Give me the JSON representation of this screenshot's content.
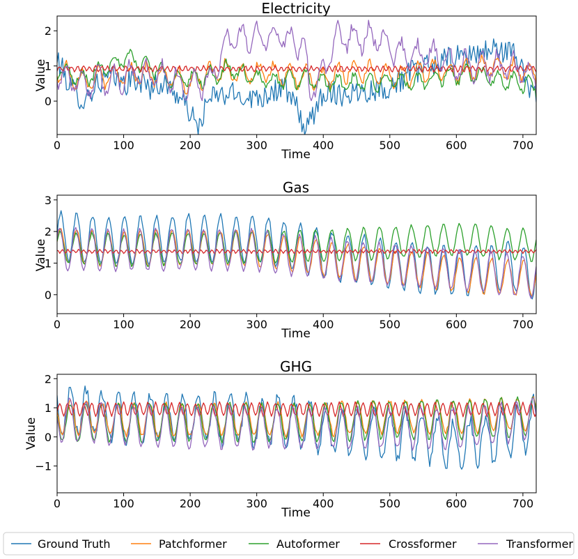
{
  "chart_data": [
    {
      "type": "line",
      "title": "Electricity",
      "xlabel": "Time",
      "ylabel": "Value",
      "xlim": [
        0,
        720
      ],
      "ylim": [
        -0.95,
        2.42
      ],
      "xticks": [
        0,
        100,
        200,
        300,
        400,
        500,
        600,
        700
      ],
      "yticks": [
        0,
        1,
        2
      ],
      "series": [
        {
          "name": "Ground Truth",
          "anchors_x": [
            0,
            20,
            40,
            60,
            80,
            100,
            120,
            140,
            160,
            180,
            200,
            210,
            230,
            260,
            300,
            340,
            360,
            375,
            400,
            430,
            460,
            500,
            530,
            560,
            590,
            620,
            660,
            690,
            710,
            720
          ],
          "anchors_y": [
            1.2,
            0.4,
            0.0,
            0.5,
            0.7,
            0.5,
            0.6,
            0.4,
            0.5,
            0.2,
            -0.3,
            -0.8,
            0.1,
            0.2,
            0.1,
            0.4,
            -0.2,
            -0.85,
            0.3,
            0.2,
            0.3,
            0.4,
            0.8,
            1.0,
            1.2,
            1.3,
            1.5,
            1.3,
            0.4,
            0.3
          ],
          "noise": 0.35,
          "period": 0,
          "amp": 0
        },
        {
          "name": "Patchformer",
          "anchors_x": [
            0,
            40,
            80,
            120,
            160,
            200,
            240,
            280,
            320,
            360,
            400,
            440,
            480,
            520,
            560,
            600,
            640,
            680,
            720
          ],
          "anchors_y": [
            0.9,
            0.6,
            0.7,
            0.8,
            0.7,
            0.5,
            0.9,
            0.8,
            0.8,
            0.7,
            0.6,
            0.9,
            0.8,
            0.7,
            0.9,
            0.8,
            1.0,
            0.9,
            0.8
          ],
          "noise": 0.12,
          "period": 24,
          "amp": 0.28
        },
        {
          "name": "Autoformer",
          "anchors_x": [
            0,
            40,
            80,
            110,
            140,
            180,
            230,
            260,
            300,
            340,
            380,
            420,
            460,
            500,
            540,
            580,
            620,
            660,
            700,
            720
          ],
          "anchors_y": [
            0.9,
            0.6,
            1.1,
            1.2,
            1.0,
            0.6,
            0.7,
            0.9,
            0.6,
            0.6,
            0.6,
            0.5,
            0.5,
            0.6,
            0.5,
            0.7,
            0.8,
            0.6,
            0.5,
            0.4
          ],
          "noise": 0.12,
          "period": 24,
          "amp": 0.22
        },
        {
          "name": "Crossformer",
          "anchors_x": [
            0,
            720
          ],
          "anchors_y": [
            0.92,
            0.92
          ],
          "noise": 0.03,
          "period": 9,
          "amp": 0.07
        },
        {
          "name": "Transformer",
          "anchors_x": [
            0,
            40,
            80,
            120,
            160,
            200,
            230,
            240,
            260,
            300,
            340,
            370,
            380,
            400,
            420,
            440,
            480,
            520,
            560,
            600,
            640,
            680,
            720
          ],
          "anchors_y": [
            0.8,
            0.5,
            0.6,
            0.8,
            0.7,
            0.4,
            0.6,
            1.0,
            1.8,
            1.8,
            1.8,
            1.6,
            0.3,
            0.8,
            1.8,
            1.8,
            1.8,
            1.3,
            1.3,
            1.0,
            1.0,
            1.0,
            0.7
          ],
          "noise": 0.18,
          "period": 24,
          "amp": 0.35
        }
      ]
    },
    {
      "type": "line",
      "title": "Gas",
      "xlabel": "Time",
      "ylabel": "Value",
      "xlim": [
        0,
        720
      ],
      "ylim": [
        -0.6,
        3.15
      ],
      "xticks": [
        0,
        100,
        200,
        300,
        400,
        500,
        600,
        700
      ],
      "yticks": [
        0,
        1,
        2,
        3
      ],
      "series": [
        {
          "name": "Ground Truth",
          "anchors_x": [
            0,
            100,
            200,
            300,
            360,
            420,
            500,
            560,
            620,
            680,
            720
          ],
          "anchors_y": [
            1.85,
            1.7,
            1.8,
            1.75,
            1.5,
            1.2,
            1.0,
            0.8,
            0.75,
            0.9,
            0.6
          ],
          "noise": 0.08,
          "period": 24,
          "amp": 0.75
        },
        {
          "name": "Patchformer",
          "anchors_x": [
            0,
            100,
            200,
            300,
            400,
            500,
            600,
            720
          ],
          "anchors_y": [
            1.55,
            1.45,
            1.5,
            1.45,
            1.15,
            0.9,
            0.65,
            0.5
          ],
          "noise": 0.05,
          "period": 24,
          "amp": 0.55
        },
        {
          "name": "Autoformer",
          "anchors_x": [
            0,
            100,
            200,
            300,
            400,
            500,
            600,
            720
          ],
          "anchors_y": [
            1.5,
            1.4,
            1.45,
            1.5,
            1.55,
            1.65,
            1.75,
            1.55
          ],
          "noise": 0.05,
          "period": 24,
          "amp": 0.5
        },
        {
          "name": "Crossformer",
          "anchors_x": [
            0,
            720
          ],
          "anchors_y": [
            1.37,
            1.37
          ],
          "noise": 0.02,
          "period": 8,
          "amp": 0.05
        },
        {
          "name": "Transformer",
          "anchors_x": [
            0,
            100,
            200,
            300,
            400,
            500,
            600,
            720
          ],
          "anchors_y": [
            1.45,
            1.4,
            1.45,
            1.4,
            1.15,
            0.95,
            0.8,
            0.55
          ],
          "noise": 0.05,
          "period": 24,
          "amp": 0.65
        }
      ]
    },
    {
      "type": "line",
      "title": "GHG",
      "xlabel": "Time",
      "ylabel": "Value",
      "xlim": [
        0,
        720
      ],
      "ylim": [
        -1.92,
        2.15
      ],
      "xticks": [
        0,
        100,
        200,
        300,
        400,
        500,
        600,
        700
      ],
      "yticks": [
        -1,
        0,
        1,
        2
      ],
      "series": [
        {
          "name": "Ground Truth",
          "anchors_x": [
            0,
            40,
            100,
            200,
            300,
            340,
            400,
            480,
            560,
            600,
            660,
            720
          ],
          "anchors_y": [
            0.9,
            0.9,
            0.6,
            0.7,
            0.5,
            0.6,
            0.3,
            0.1,
            0.0,
            -0.3,
            0.0,
            0.5
          ],
          "noise": 0.22,
          "period": 24,
          "amp": 0.8
        },
        {
          "name": "Patchformer",
          "anchors_x": [
            0,
            100,
            200,
            300,
            400,
            500,
            600,
            720
          ],
          "anchors_y": [
            0.7,
            0.6,
            0.6,
            0.6,
            0.6,
            0.7,
            0.7,
            0.8
          ],
          "noise": 0.08,
          "period": 24,
          "amp": 0.55
        },
        {
          "name": "Autoformer",
          "anchors_x": [
            0,
            100,
            200,
            300,
            400,
            500,
            600,
            720
          ],
          "anchors_y": [
            0.5,
            0.5,
            0.5,
            0.5,
            0.5,
            0.6,
            0.6,
            0.7
          ],
          "noise": 0.08,
          "period": 24,
          "amp": 0.65
        },
        {
          "name": "Crossformer",
          "anchors_x": [
            0,
            720
          ],
          "anchors_y": [
            0.95,
            0.95
          ],
          "noise": 0.04,
          "period": 12,
          "amp": 0.22
        },
        {
          "name": "Transformer",
          "anchors_x": [
            0,
            100,
            200,
            300,
            400,
            500,
            600,
            720
          ],
          "anchors_y": [
            0.6,
            0.4,
            0.35,
            0.3,
            0.3,
            0.3,
            0.3,
            0.6
          ],
          "noise": 0.1,
          "period": 24,
          "amp": 0.7
        }
      ]
    }
  ],
  "legend": {
    "placement": "bottom",
    "entries": [
      "Ground Truth",
      "Patchformer",
      "Autoformer",
      "Crossformer",
      "Transformer"
    ]
  },
  "colors": {
    "Ground Truth": "#1f77b4",
    "Patchformer": "#ff7f0e",
    "Autoformer": "#2ca02c",
    "Crossformer": "#d62728",
    "Transformer": "#9467bd"
  }
}
